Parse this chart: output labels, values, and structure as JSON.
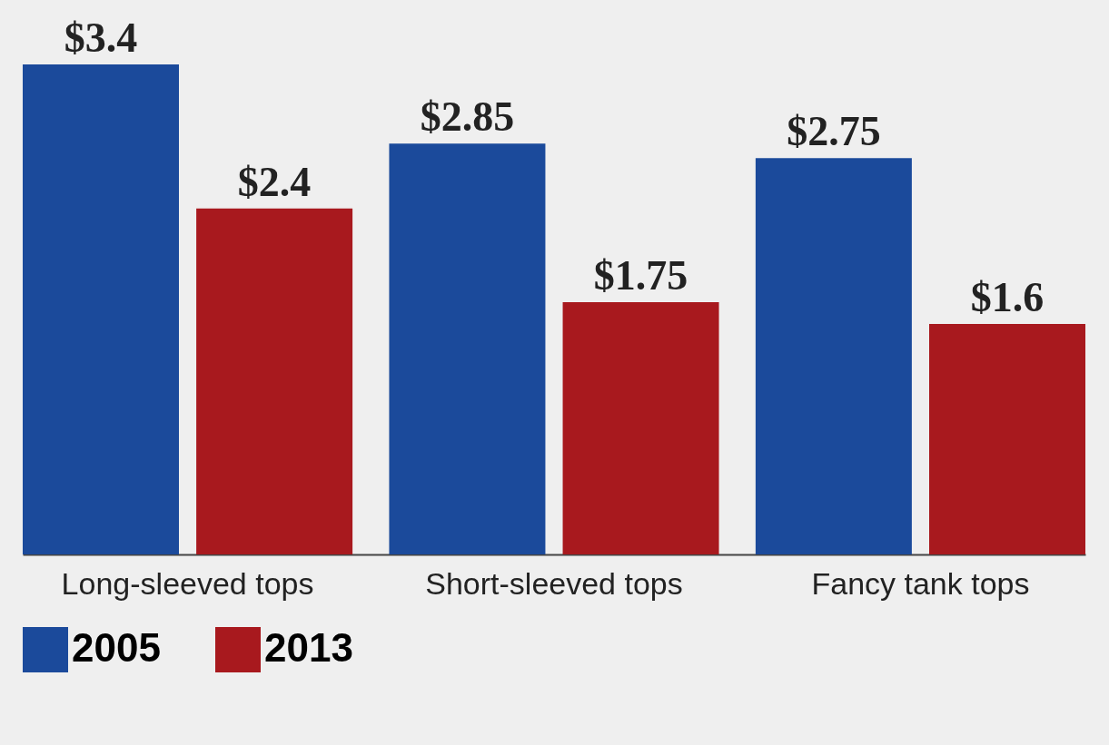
{
  "chart_data": {
    "type": "bar",
    "categories": [
      "Long-sleeved tops",
      "Short-sleeved tops",
      "Fancy tank tops"
    ],
    "series": [
      {
        "name": "2005",
        "color": "#1b4a9b",
        "values": [
          3.4,
          2.85,
          2.75
        ],
        "value_labels": [
          "$3.4",
          "$2.85",
          "$2.75"
        ]
      },
      {
        "name": "2013",
        "color": "#a8191e",
        "values": [
          2.4,
          1.75,
          1.6
        ],
        "value_labels": [
          "$2.4",
          "$1.75",
          "$1.6"
        ]
      }
    ],
    "legend": "bottom",
    "grid": false
  }
}
